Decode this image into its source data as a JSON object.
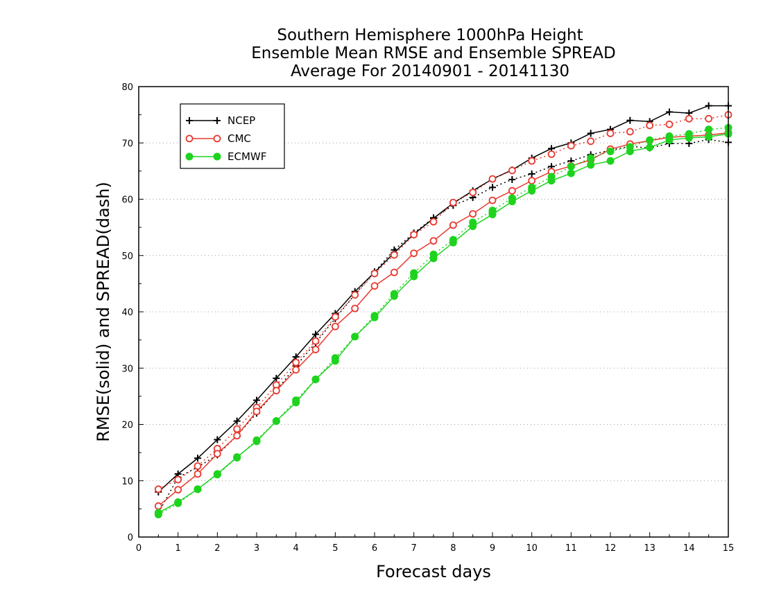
{
  "chart_data": {
    "type": "line",
    "title_lines": [
      "Southern Hemisphere 1000hPa Height",
      "Ensemble Mean RMSE and Ensemble SPREAD",
      "Average For 20140901 - 20141130"
    ],
    "xlabel": "Forecast days",
    "ylabel": "RMSE(solid) and SPREAD(dash)",
    "xlim": [
      0,
      15
    ],
    "ylim": [
      0,
      80
    ],
    "xticks": [
      "0",
      "1",
      "2",
      "3",
      "4",
      "5",
      "6",
      "7",
      "8",
      "9",
      "10",
      "11",
      "12",
      "13",
      "14",
      "15"
    ],
    "yticks": [
      "0",
      "10",
      "20",
      "30",
      "40",
      "50",
      "60",
      "70",
      "80"
    ],
    "grid": "horizontal dotted",
    "legend_position": "top-left",
    "x": [
      0.5,
      1,
      1.5,
      2,
      2.5,
      3,
      3.5,
      4,
      4.5,
      5,
      5.5,
      6,
      6.5,
      7,
      7.5,
      8,
      8.5,
      9,
      9.5,
      10,
      10.5,
      11,
      11.5,
      12,
      12.5,
      13,
      13.5,
      14,
      14.5,
      15
    ],
    "series": [
      {
        "name": "NCEP",
        "color": "#000000",
        "marker": "plus",
        "rmse": [
          8.0,
          11.2,
          14.0,
          17.3,
          20.6,
          24.3,
          28.2,
          32.0,
          36.0,
          39.7,
          43.6,
          47.0,
          50.5,
          53.8,
          56.6,
          59.3,
          61.5,
          63.6,
          65.2,
          67.3,
          69.0,
          70.0,
          71.7,
          72.4,
          74.0,
          73.8,
          75.5,
          75.3,
          76.6,
          76.6
        ],
        "spread": [
          4.3,
          10.6,
          12.4,
          14.6,
          18.0,
          22.0,
          26.0,
          30.4,
          34.5,
          38.8,
          43.1,
          47.1,
          51.0,
          54.0,
          56.7,
          58.9,
          60.3,
          62.1,
          63.5,
          64.5,
          65.8,
          66.8,
          67.9,
          68.7,
          69.4,
          69.1,
          69.9,
          69.9,
          70.6,
          70.1
        ]
      },
      {
        "name": "CMC",
        "color": "#e8392f",
        "marker": "open-circle",
        "rmse": [
          5.5,
          8.4,
          11.2,
          14.8,
          18.0,
          22.3,
          26.0,
          29.7,
          33.3,
          37.4,
          40.6,
          44.6,
          47.0,
          50.4,
          52.6,
          55.4,
          57.4,
          59.8,
          61.5,
          63.3,
          64.9,
          65.9,
          67.0,
          68.9,
          69.8,
          70.4,
          71.0,
          71.2,
          71.4,
          71.8
        ],
        "spread": [
          8.5,
          10.2,
          12.6,
          15.7,
          19.2,
          23.0,
          27.0,
          31.0,
          34.8,
          39.1,
          43.0,
          46.8,
          50.1,
          53.7,
          56.0,
          59.4,
          61.2,
          63.6,
          65.1,
          66.8,
          68.0,
          69.5,
          70.3,
          71.7,
          72.0,
          73.1,
          73.3,
          74.3,
          74.3,
          75.0
        ]
      },
      {
        "name": "ECMWF",
        "color": "#1ed31e",
        "marker": "filled-circle",
        "rmse": [
          4.3,
          6.2,
          8.5,
          11.2,
          14.2,
          17.0,
          20.6,
          23.9,
          28.0,
          31.3,
          35.6,
          39.0,
          42.8,
          46.3,
          49.5,
          52.3,
          55.2,
          57.3,
          59.6,
          61.5,
          63.3,
          64.6,
          66.1,
          66.8,
          68.5,
          69.2,
          70.5,
          70.9,
          71.1,
          71.6
        ],
        "spread": [
          4.0,
          6.0,
          8.5,
          11.1,
          14.1,
          17.2,
          20.6,
          24.3,
          28.0,
          31.8,
          35.6,
          39.3,
          43.2,
          46.9,
          50.2,
          52.8,
          55.9,
          58.0,
          60.2,
          62.1,
          64.0,
          65.8,
          67.3,
          68.5,
          69.3,
          70.5,
          71.2,
          71.6,
          72.4,
          72.7
        ]
      }
    ]
  }
}
